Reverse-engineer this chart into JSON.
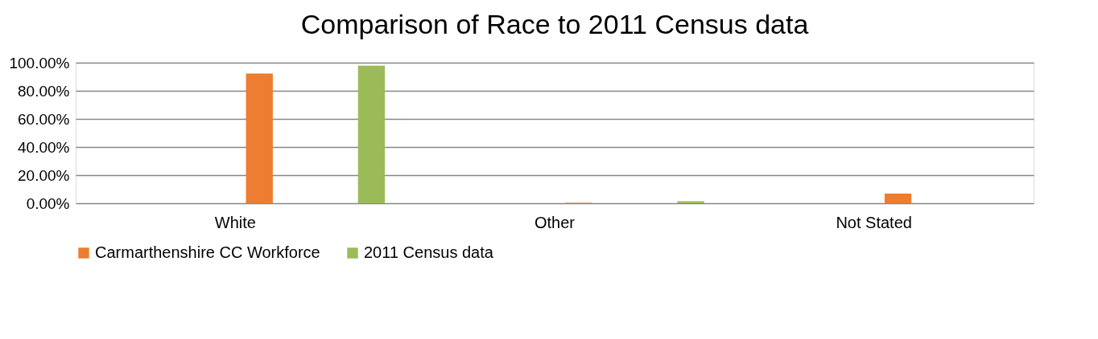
{
  "chart_data": {
    "type": "bar",
    "title": "Comparison of Race to 2011 Census data",
    "categories": [
      "White",
      "Other",
      "Not Stated"
    ],
    "series": [
      {
        "name": "Carmarthenshire CC Workforce",
        "color": "#ed7d31",
        "values": [
          92.3,
          0.3,
          6.8
        ]
      },
      {
        "name": "2011 Census data",
        "color": "#9bbb59",
        "values": [
          97.9,
          1.5,
          0
        ]
      }
    ],
    "ylim": [
      0,
      100
    ],
    "yticks": [
      {
        "value": 0,
        "label": "0.00%"
      },
      {
        "value": 20,
        "label": "20.00%"
      },
      {
        "value": 40,
        "label": "40.00%"
      },
      {
        "value": 60,
        "label": "60.00%"
      },
      {
        "value": 80,
        "label": "80.00%"
      },
      {
        "value": 100,
        "label": "100.00%"
      }
    ],
    "grid": "y",
    "legend": "bottom"
  }
}
